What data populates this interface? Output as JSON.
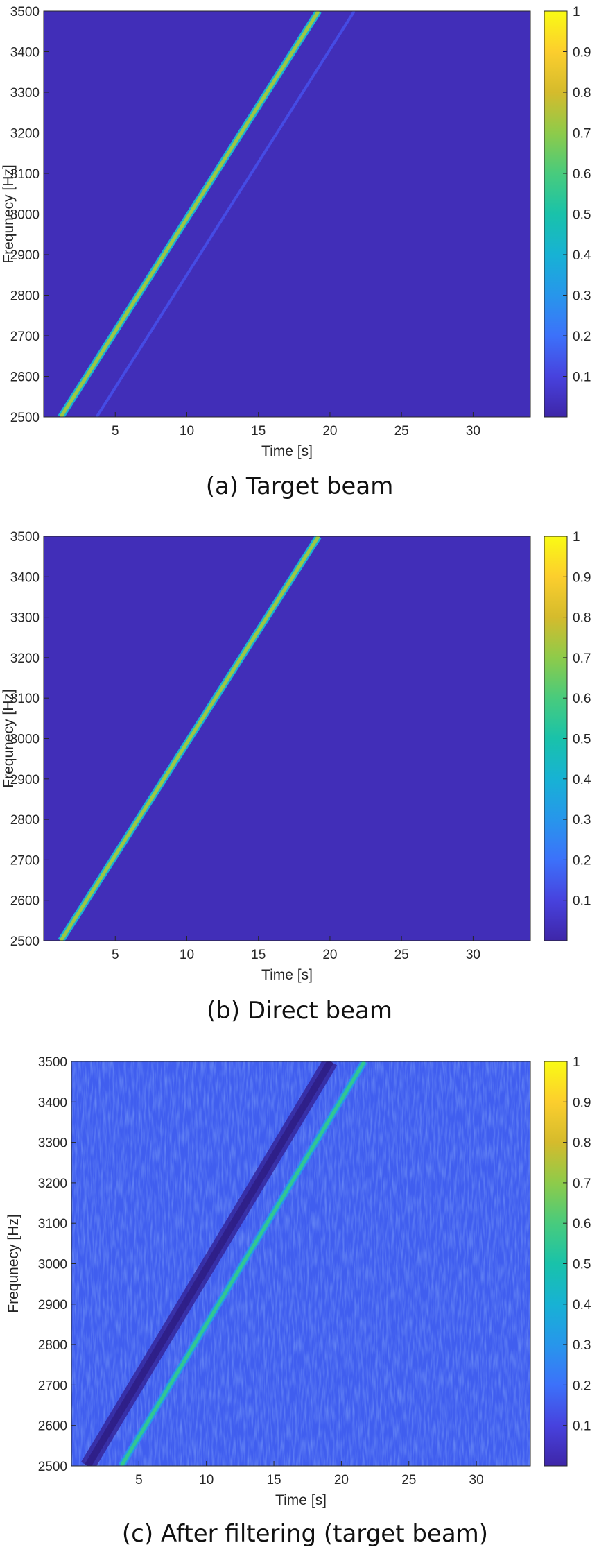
{
  "chart_data": [
    {
      "type": "heatmap",
      "caption": "(a) Target beam",
      "xlabel": "Time [s]",
      "ylabel": "Frequnecy [Hz]",
      "xlim": [
        0,
        34
      ],
      "ylim": [
        2500,
        3500
      ],
      "x_ticks": [
        5,
        10,
        15,
        20,
        25,
        30
      ],
      "y_ticks": [
        2500,
        2600,
        2700,
        2800,
        2900,
        3000,
        3100,
        3200,
        3300,
        3400,
        3500
      ],
      "colorbar_ticks": [
        0.1,
        0.2,
        0.3,
        0.4,
        0.5,
        0.6,
        0.7,
        0.8,
        0.9,
        1
      ],
      "colorbar_range": [
        0,
        1
      ],
      "colormap": "parula",
      "background_level": 0.03,
      "noise": false,
      "series": [
        {
          "x": [
            1.2,
            19.2
          ],
          "y": [
            2500,
            3500
          ],
          "intensity": 0.72
        },
        {
          "x": [
            3.7,
            21.7
          ],
          "y": [
            2500,
            3500
          ],
          "intensity": 0.12
        }
      ]
    },
    {
      "type": "heatmap",
      "caption": "(b) Direct beam",
      "xlabel": "Time [s]",
      "ylabel": "Frequnecy [Hz]",
      "xlim": [
        0,
        34
      ],
      "ylim": [
        2500,
        3500
      ],
      "x_ticks": [
        5,
        10,
        15,
        20,
        25,
        30
      ],
      "y_ticks": [
        2500,
        2600,
        2700,
        2800,
        2900,
        3000,
        3100,
        3200,
        3300,
        3400,
        3500
      ],
      "colorbar_ticks": [
        0.1,
        0.2,
        0.3,
        0.4,
        0.5,
        0.6,
        0.7,
        0.8,
        0.9,
        1
      ],
      "colorbar_range": [
        0,
        1
      ],
      "colormap": "parula",
      "background_level": 0.03,
      "noise": false,
      "series": [
        {
          "x": [
            1.2,
            19.2
          ],
          "y": [
            2500,
            3500
          ],
          "intensity": 0.72
        }
      ]
    },
    {
      "type": "heatmap",
      "caption": "(c) After filtering (target beam)",
      "xlabel": "Time [s]",
      "ylabel": "Frequnecy [Hz]",
      "xlim": [
        0,
        34
      ],
      "ylim": [
        2500,
        3500
      ],
      "x_ticks": [
        5,
        10,
        15,
        20,
        25,
        30
      ],
      "y_ticks": [
        2500,
        2600,
        2700,
        2800,
        2900,
        3000,
        3100,
        3200,
        3300,
        3400,
        3500
      ],
      "colorbar_ticks": [
        0.1,
        0.2,
        0.3,
        0.4,
        0.5,
        0.6,
        0.7,
        0.8,
        0.9,
        1
      ],
      "colorbar_range": [
        0,
        1
      ],
      "colormap": "parula",
      "background_level": 0.16,
      "noise": true,
      "series": [
        {
          "x": [
            1.2,
            19.2
          ],
          "y": [
            2500,
            3500
          ],
          "intensity": 0.0
        },
        {
          "x": [
            3.7,
            21.7
          ],
          "y": [
            2500,
            3500
          ],
          "intensity": 0.55
        }
      ]
    }
  ]
}
